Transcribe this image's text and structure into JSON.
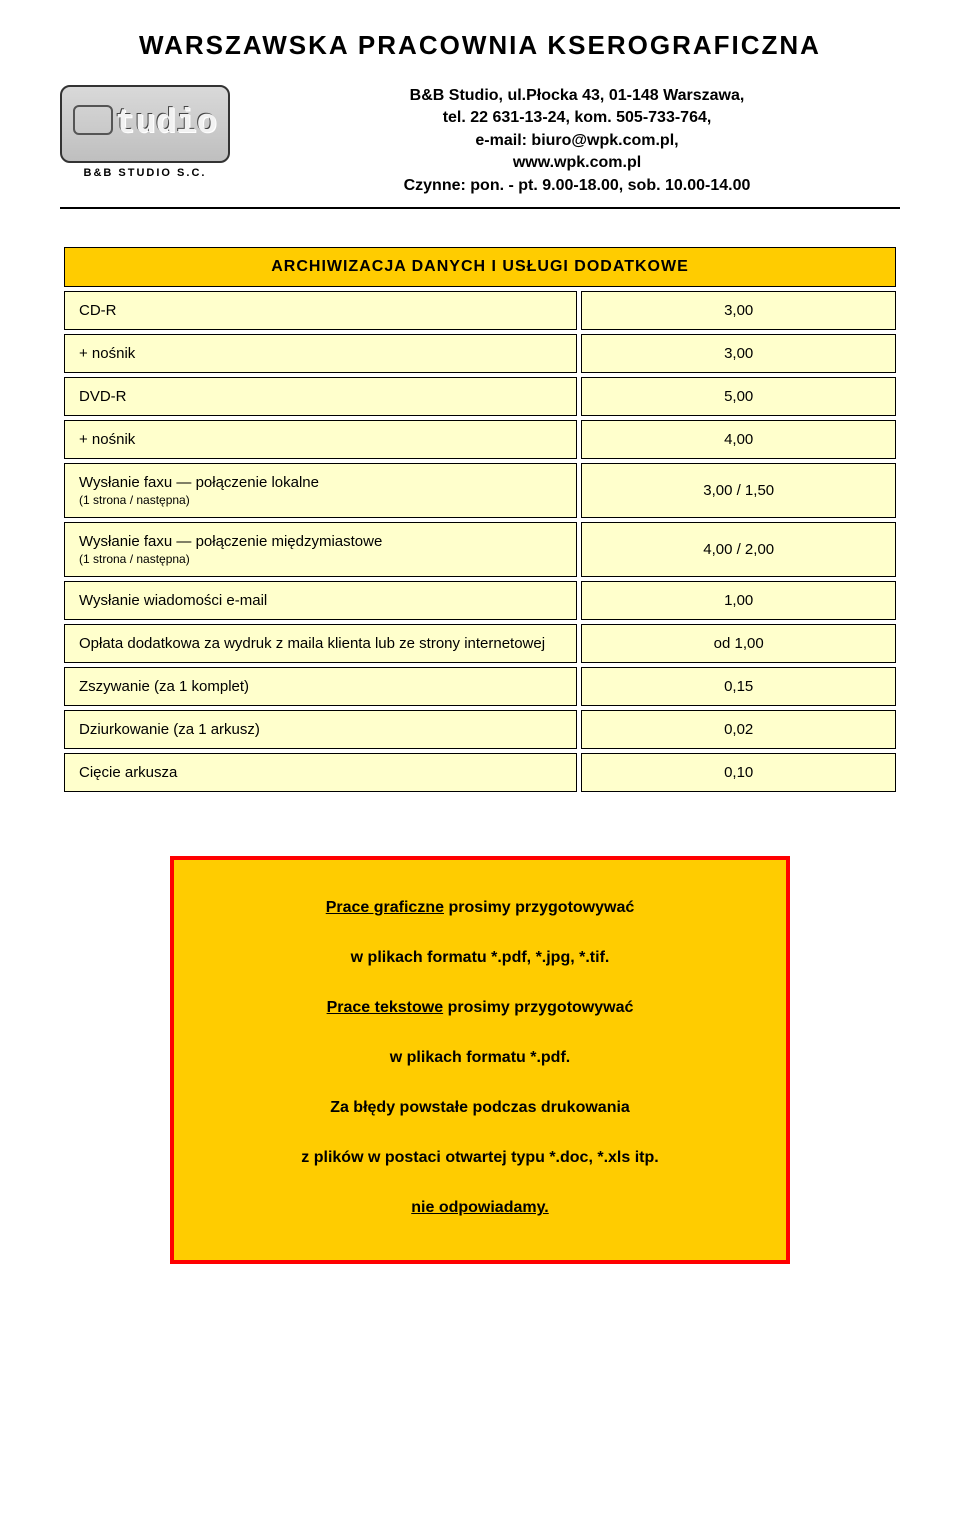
{
  "header": {
    "page_title": "WARSZAWSKA PRACOWNIA KSEROGRAFICZNA",
    "logo_text": "tudio",
    "logo_caption": "B&B STUDIO S.C.",
    "address_lines": [
      "B&B Studio, ul.Płocka 43, 01-148 Warszawa,",
      "tel. 22 631-13-24, kom. 505-733-764,",
      "e-mail: biuro@wpk.com.pl,",
      "www.wpk.com.pl",
      "Czynne: pon. - pt. 9.00-18.00, sob. 10.00-14.00"
    ]
  },
  "table": {
    "header": "ARCHIWIZACJA DANYCH I USŁUGI DODATKOWE",
    "rows": [
      {
        "label": "CD-R",
        "sub": "",
        "value": "3,00"
      },
      {
        "label": "+ nośnik",
        "sub": "",
        "value": "3,00"
      },
      {
        "label": "DVD-R",
        "sub": "",
        "value": "5,00"
      },
      {
        "label": "+ nośnik",
        "sub": "",
        "value": "4,00"
      },
      {
        "label": "Wysłanie faxu — połączenie lokalne",
        "sub": "(1 strona / następna)",
        "value": "3,00 / 1,50"
      },
      {
        "label": "Wysłanie faxu — połączenie międzymiastowe",
        "sub": "(1 strona / następna)",
        "value": "4,00 / 2,00"
      },
      {
        "label": "Wysłanie wiadomości e-mail",
        "sub": "",
        "value": "1,00"
      },
      {
        "label": "Opłata dodatkowa za wydruk z maila klienta lub ze strony internetowej",
        "sub": "",
        "value": "od 1,00"
      },
      {
        "label": "Zszywanie (za 1 komplet)",
        "sub": "",
        "value": "0,15"
      },
      {
        "label": "Dziurkowanie (za 1 arkusz)",
        "sub": "",
        "value": "0,02"
      },
      {
        "label": "Cięcie arkusza",
        "sub": "",
        "value": "0,10"
      }
    ]
  },
  "notice": {
    "line1a": "Prace graficzne",
    "line1b": " prosimy przygotowywać",
    "line2": "w plikach formatu *.pdf, *.jpg, *.tif.",
    "line3a": "Prace tekstowe",
    "line3b": " prosimy przygotowywać",
    "line4": "w plikach formatu *.pdf.",
    "line5": "Za błędy powstałe podczas drukowania",
    "line6": "z plików w postaci otwartej typu *.doc, *.xls itp.",
    "line7": "nie odpowiadamy."
  },
  "colors": {
    "header_bg": "#ffcc00",
    "row_bg": "#ffffcc",
    "border": "#000000",
    "notice_border": "#ff0000",
    "notice_bg": "#ffcc00"
  }
}
